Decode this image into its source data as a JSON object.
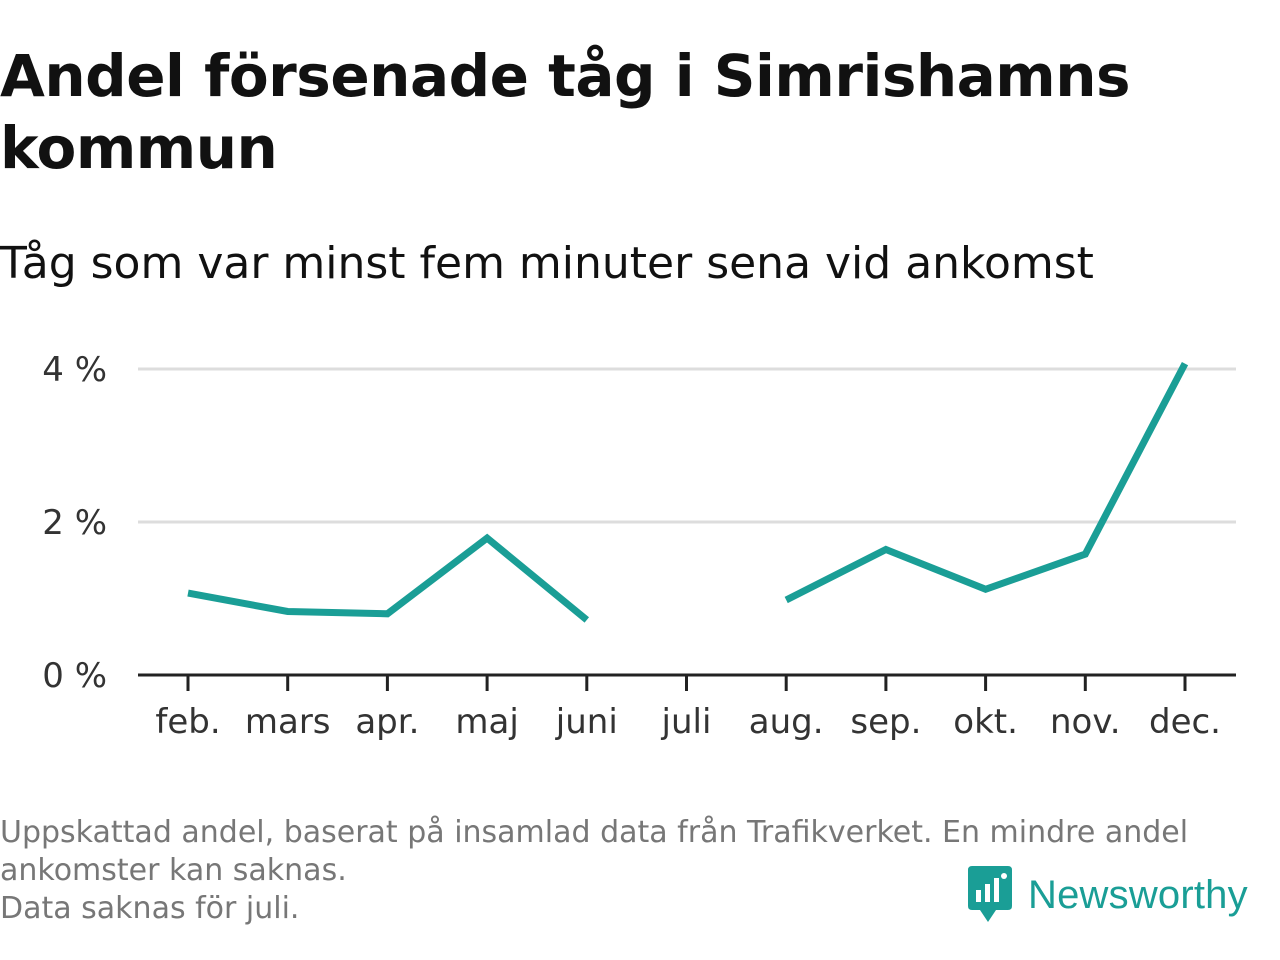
{
  "title": "Andel försenade tåg i Simrishamns kommun",
  "subtitle": "Tåg som var minst fem minuter sena vid ankomst",
  "notes": [
    "Uppskattad andel, baserat på insamlad data från Trafikverket. En mindre andel",
    "ankomster kan saknas.",
    "Data saknas för juli."
  ],
  "brand": {
    "name": "Newsworthy",
    "icon": "newsworthy-logo-icon",
    "color": "#1a9e96"
  },
  "chart_data": {
    "type": "line",
    "categories": [
      "feb.",
      "mars",
      "apr.",
      "maj",
      "juni",
      "juli",
      "aug.",
      "sep.",
      "okt.",
      "nov.",
      "dec."
    ],
    "series": [
      {
        "values": [
          1.07,
          0.83,
          0.8,
          1.79,
          0.72,
          null,
          0.98,
          1.64,
          1.12,
          1.58,
          4.07
        ],
        "color": "#1a9e96"
      }
    ],
    "y_ticks": [
      {
        "value": 0,
        "label": "0 %"
      },
      {
        "value": 2,
        "label": "2 %"
      },
      {
        "value": 4,
        "label": "4 %"
      }
    ],
    "ylim": [
      0,
      4.1
    ],
    "grid": true,
    "grid_color": "#dddddd",
    "axis_color": "#222222",
    "legend": "none"
  }
}
